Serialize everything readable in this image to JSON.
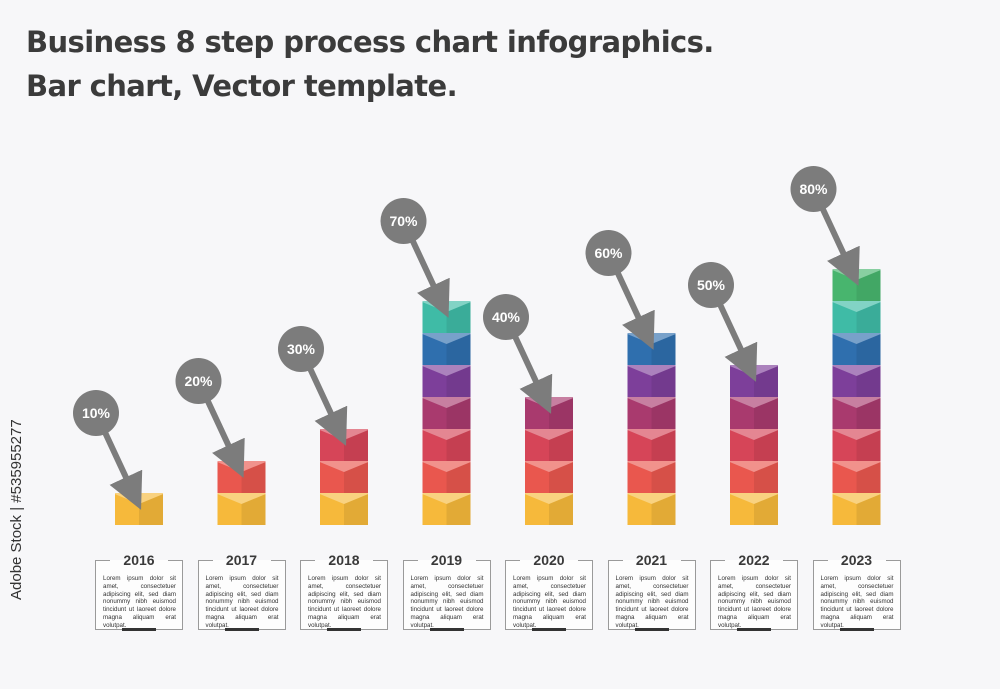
{
  "title_lines": [
    "Business 8 step process chart infographics.",
    "Bar chart, Vector template."
  ],
  "watermark": "Adobe Stock | #535955277",
  "chart_data": {
    "type": "bar",
    "categories": [
      "2016",
      "2017",
      "2018",
      "2019",
      "2020",
      "2021",
      "2022",
      "2023"
    ],
    "values": [
      10,
      20,
      30,
      70,
      40,
      60,
      50,
      80
    ],
    "value_labels": [
      "10%",
      "20%",
      "30%",
      "70%",
      "40%",
      "60%",
      "50%",
      "80%"
    ],
    "unit": "%",
    "block_value": 10,
    "block_colors": [
      "#f6b93b",
      "#e9574e",
      "#d64558",
      "#a93a6e",
      "#7d3f9a",
      "#2f6fae",
      "#3fbba6",
      "#48b56e"
    ],
    "bubble_color": "#7c7c7c",
    "grid": false
  },
  "cards": [
    {
      "year": "2016",
      "text": "Lorem ipsum dolor sit amet, consectetuer adipiscing elit, sed diam nonummy nibh euismod tincidunt ut laoreet dolore magna aliquam erat volutpat."
    },
    {
      "year": "2017",
      "text": "Lorem ipsum dolor sit amet, consectetuer adipiscing elit, sed diam nonummy nibh euismod tincidunt ut laoreet dolore magna aliquam erat volutpat."
    },
    {
      "year": "2018",
      "text": "Lorem ipsum dolor sit amet, consectetuer adipiscing elit, sed diam nonummy nibh euismod tincidunt ut laoreet dolore magna aliquam erat volutpat."
    },
    {
      "year": "2019",
      "text": "Lorem ipsum dolor sit amet, consectetuer adipiscing elit, sed diam nonummy nibh euismod tincidunt ut laoreet dolore magna aliquam erat volutpat."
    },
    {
      "year": "2020",
      "text": "Lorem ipsum dolor sit amet, consectetuer adipiscing elit, sed diam nonummy nibh euismod tincidunt ut laoreet dolore magna aliquam erat volutpat."
    },
    {
      "year": "2021",
      "text": "Lorem ipsum dolor sit amet, consectetuer adipiscing elit, sed diam nonummy nibh euismod tincidunt ut laoreet dolore magna aliquam erat volutpat."
    },
    {
      "year": "2022",
      "text": "Lorem ipsum dolor sit amet, consectetuer adipiscing elit, sed diam nonummy nibh euismod tincidunt ut laoreet dolore magna aliquam erat volutpat."
    },
    {
      "year": "2023",
      "text": "Lorem ipsum dolor sit amet, consectetuer adipiscing elit, sed diam nonummy nibh euismod tincidunt ut laoreet dolore magna aliquam erat volutpat."
    }
  ]
}
